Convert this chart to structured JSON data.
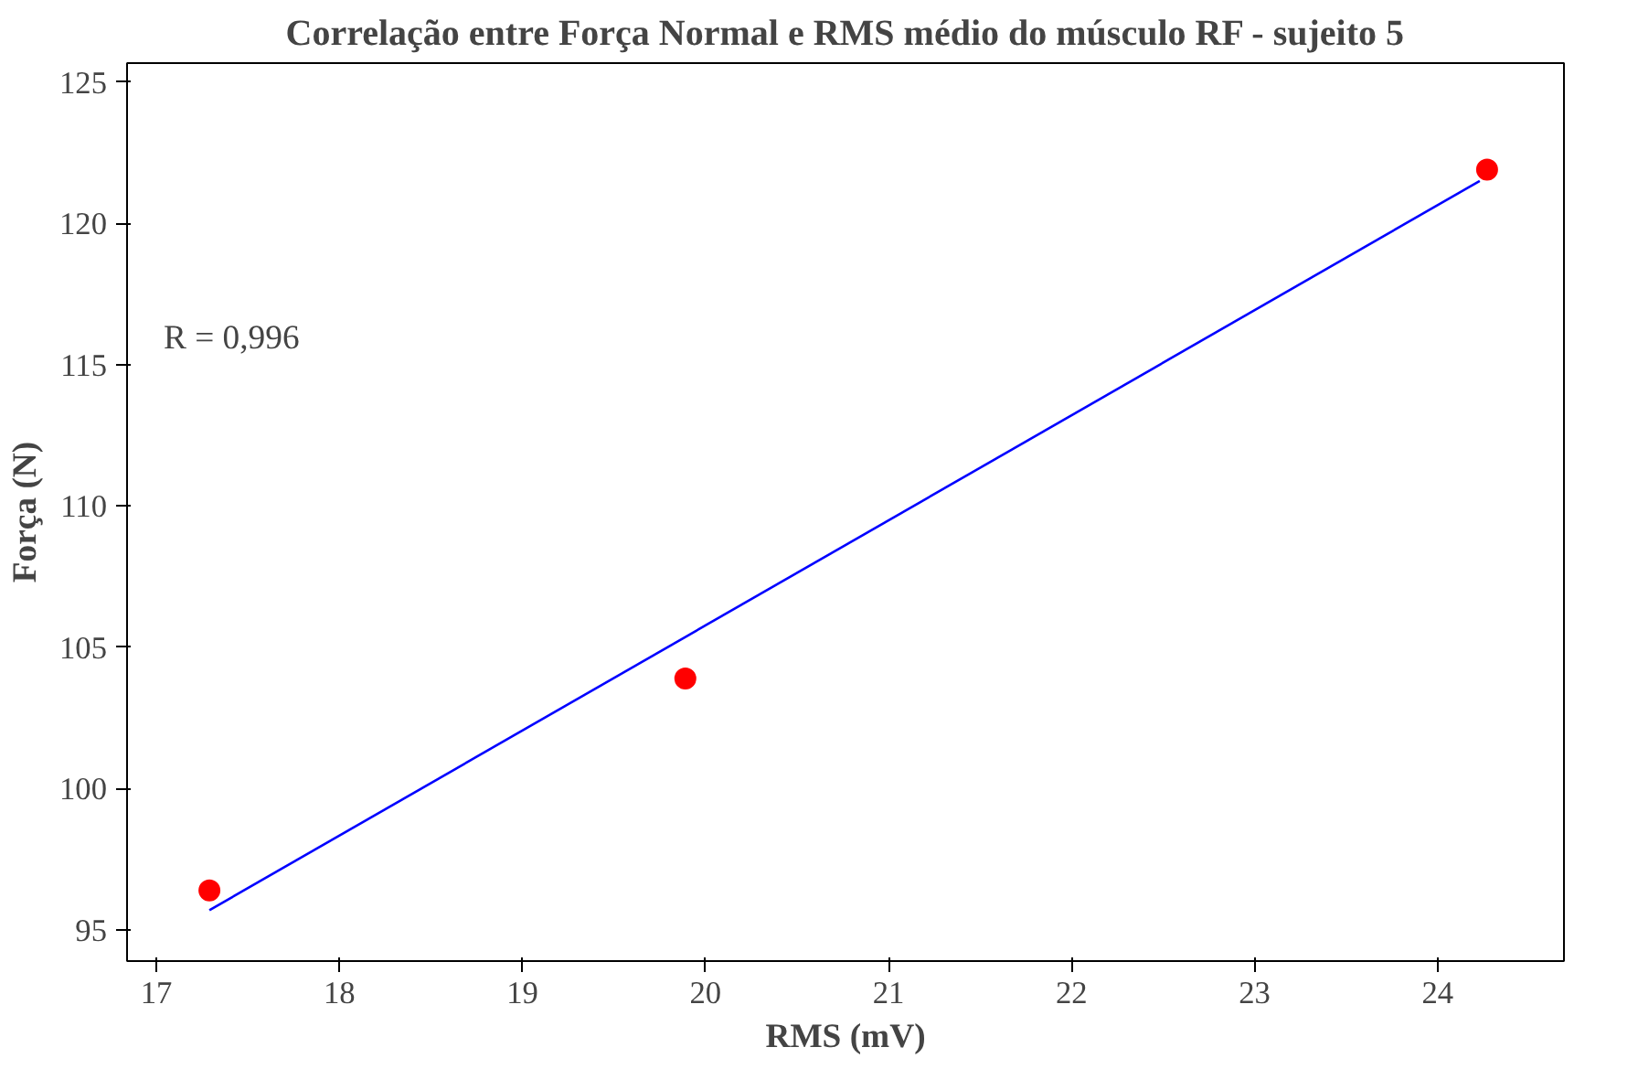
{
  "chart_data": {
    "type": "scatter",
    "title": "Correlação entre Força Normal e RMS médio do músculo RF - sujeito 5",
    "xlabel": "RMS (mV)",
    "ylabel": "Força (N)",
    "x": [
      17.29,
      19.89,
      24.27
    ],
    "series": [
      {
        "color": "#ff0000",
        "values": [
          96.4,
          103.9,
          121.9
        ],
        "marker": "circle"
      },
      {
        "type": "line",
        "color": "#0000ff",
        "x": [
          17.29,
          24.23
        ],
        "values": [
          95.7,
          121.5
        ],
        "line_style": "solid"
      }
    ],
    "xlim": [
      16.84,
      24.69
    ],
    "ylim": [
      93.9,
      125.67
    ],
    "xticks": [
      17,
      18,
      19,
      20,
      21,
      22,
      23,
      24
    ],
    "yticks": [
      95,
      100,
      105,
      110,
      115,
      120,
      125
    ],
    "grid": false,
    "annotations": [
      "R = 0,996"
    ]
  }
}
